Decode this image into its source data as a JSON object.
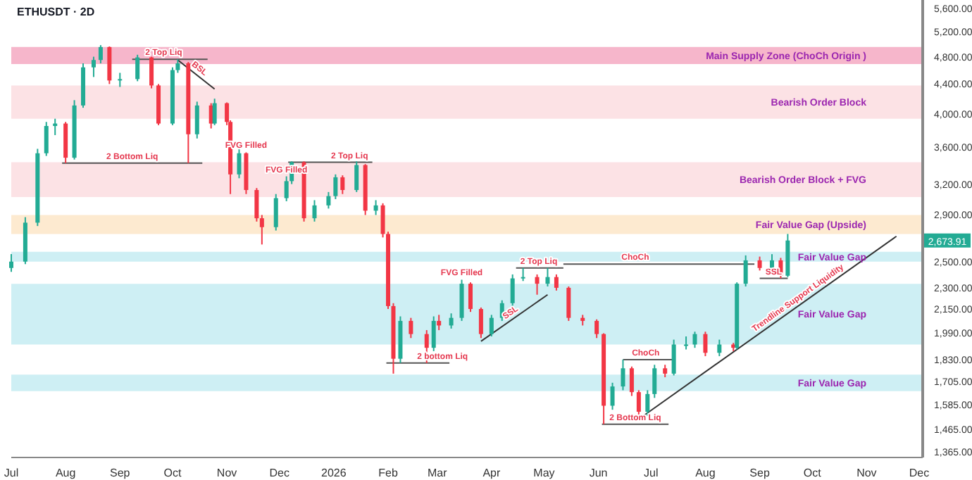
{
  "chart_data": {
    "type": "candlestick",
    "title": "ETHUSDT · 2D",
    "log": true,
    "xlim": [
      "2025-07-01",
      "2026-12-03"
    ],
    "xticks": [
      {
        "value": "2025-07-01",
        "label": "Jul"
      },
      {
        "value": "2025-08-01",
        "label": "Aug"
      },
      {
        "value": "2025-09-01",
        "label": "Sep"
      },
      {
        "value": "2025-10-01",
        "label": "Oct"
      },
      {
        "value": "2025-11-01",
        "label": "Nov"
      },
      {
        "value": "2025-12-01",
        "label": "Dec"
      },
      {
        "value": "2026-01-01",
        "label": "2026"
      },
      {
        "value": "2026-02-01",
        "label": "Feb"
      },
      {
        "value": "2026-03-01",
        "label": "Mar"
      },
      {
        "value": "2026-04-01",
        "label": "Apr"
      },
      {
        "value": "2026-05-01",
        "label": "May"
      },
      {
        "value": "2026-06-01",
        "label": "Jun"
      },
      {
        "value": "2026-07-01",
        "label": "Jul"
      },
      {
        "value": "2026-08-01",
        "label": "Aug"
      },
      {
        "value": "2026-09-01",
        "label": "Sep"
      },
      {
        "value": "2026-10-01",
        "label": "Oct"
      },
      {
        "value": "2026-11-01",
        "label": "Nov"
      },
      {
        "value": "2026-12-01",
        "label": "Dec"
      }
    ],
    "ylim": [
      1340,
      5750
    ],
    "yticks": [
      {
        "value": 1365,
        "label": "1,365.00"
      },
      {
        "value": 1465,
        "label": "1,465.00"
      },
      {
        "value": 1585,
        "label": "1,585.00"
      },
      {
        "value": 1705,
        "label": "1,705.00"
      },
      {
        "value": 1830,
        "label": "1,830.00"
      },
      {
        "value": 1990,
        "label": "1,990.00"
      },
      {
        "value": 2150,
        "label": "2,150.00"
      },
      {
        "value": 2300,
        "label": "2,300.00"
      },
      {
        "value": 2500,
        "label": "2,500.00"
      },
      {
        "value": 2900,
        "label": "2,900.00"
      },
      {
        "value": 3200,
        "label": "3,200.00"
      },
      {
        "value": 3600,
        "label": "3,600.00"
      },
      {
        "value": 4000,
        "label": "4,000.00"
      },
      {
        "value": 4400,
        "label": "4,400.00"
      },
      {
        "value": 4800,
        "label": "4,800.00"
      },
      {
        "value": 5200,
        "label": "5,200.00"
      },
      {
        "value": 5600,
        "label": "5,600.00"
      }
    ],
    "x": [
      "2025-07-01",
      "2025-07-09",
      "2025-07-16",
      "2025-07-21",
      "2025-07-26",
      "2025-08-01",
      "2025-08-06",
      "2025-08-11",
      "2025-08-17",
      "2025-08-21",
      "2025-08-26",
      "2025-09-01",
      "2025-09-11",
      "2025-09-19",
      "2025-09-23",
      "2025-10-01",
      "2025-10-04",
      "2025-10-10",
      "2025-10-15",
      "2025-10-23",
      "2025-10-25",
      "2025-11-01",
      "2025-11-03",
      "2025-11-08",
      "2025-11-12",
      "2025-11-18",
      "2025-11-21",
      "2025-11-29",
      "2025-12-05",
      "2025-12-08",
      "2025-12-15",
      "2025-12-21",
      "2025-12-29",
      "2026-01-02",
      "2026-01-06",
      "2026-01-14",
      "2026-01-19",
      "2026-01-25",
      "2026-01-29",
      "2026-02-01",
      "2026-02-04",
      "2026-02-08",
      "2026-02-14",
      "2026-02-23",
      "2026-02-27",
      "2026-03-02",
      "2026-03-09",
      "2026-03-15",
      "2026-03-20",
      "2026-03-26",
      "2026-04-01",
      "2026-04-07",
      "2026-04-13",
      "2026-04-19",
      "2026-04-27",
      "2026-05-03",
      "2026-05-08",
      "2026-05-15",
      "2026-05-23",
      "2026-05-31",
      "2026-06-04",
      "2026-06-09",
      "2026-06-15",
      "2026-06-20",
      "2026-06-24",
      "2026-06-29",
      "2026-07-03",
      "2026-07-09",
      "2026-07-14",
      "2026-07-21",
      "2026-07-26",
      "2026-08-01",
      "2026-08-09",
      "2026-08-17",
      "2026-08-19",
      "2026-08-24",
      "2026-09-01",
      "2026-09-08",
      "2026-09-13",
      "2026-09-17"
    ],
    "ohlc": [
      [
        2450,
        2560,
        2420,
        2500
      ],
      [
        2500,
        2880,
        2480,
        2830
      ],
      [
        2830,
        3580,
        2800,
        3530
      ],
      [
        3530,
        3900,
        3500,
        3850
      ],
      [
        3850,
        3940,
        3740,
        3880
      ],
      [
        3880,
        3900,
        3420,
        3480
      ],
      [
        3480,
        4180,
        3460,
        4110
      ],
      [
        4110,
        4700,
        4080,
        4640
      ],
      [
        4640,
        4800,
        4500,
        4750
      ],
      [
        4750,
        4980,
        4700,
        4950
      ],
      [
        4950,
        4960,
        4400,
        4450
      ],
      [
        4450,
        4560,
        4360,
        4470
      ],
      [
        4470,
        4830,
        4440,
        4790
      ],
      [
        4790,
        4800,
        4340,
        4380
      ],
      [
        4380,
        4400,
        3860,
        3880
      ],
      [
        3880,
        4640,
        3860,
        4600
      ],
      [
        4600,
        4760,
        4560,
        4700
      ],
      [
        4700,
        4720,
        3420,
        3750
      ],
      [
        3750,
        4160,
        3700,
        4110
      ],
      [
        4110,
        4140,
        3820,
        3880
      ],
      [
        3880,
        4200,
        3860,
        4140
      ],
      [
        4140,
        4150,
        3860,
        3900
      ],
      [
        3900,
        3920,
        3100,
        3300
      ],
      [
        3300,
        3580,
        3260,
        3530
      ],
      [
        3530,
        3540,
        3100,
        3140
      ],
      [
        3140,
        3160,
        2840,
        2870
      ],
      [
        2870,
        2900,
        2640,
        2790
      ],
      [
        2790,
        3100,
        2760,
        3060
      ],
      [
        3060,
        3280,
        3030,
        3230
      ],
      [
        3230,
        3440,
        3200,
        3430
      ],
      [
        3430,
        3440,
        2840,
        2870
      ],
      [
        2870,
        3040,
        2840,
        2990
      ],
      [
        2990,
        3120,
        2960,
        3080
      ],
      [
        3080,
        3300,
        3050,
        3270
      ],
      [
        3270,
        3290,
        3100,
        3140
      ],
      [
        3140,
        3440,
        3120,
        3400
      ],
      [
        3400,
        3410,
        2900,
        2940
      ],
      [
        2940,
        3040,
        2900,
        2990
      ],
      [
        2990,
        3010,
        2700,
        2730
      ],
      [
        2730,
        2750,
        2150,
        2170
      ],
      [
        2170,
        2190,
        1750,
        1835
      ],
      [
        1835,
        2100,
        1810,
        2070
      ],
      [
        2070,
        2090,
        1960,
        1985
      ],
      [
        1985,
        2010,
        1810,
        1900
      ],
      [
        1900,
        2100,
        1880,
        2070
      ],
      [
        2070,
        2110,
        2010,
        2040
      ],
      [
        2040,
        2120,
        2020,
        2090
      ],
      [
        2090,
        2360,
        2070,
        2330
      ],
      [
        2330,
        2340,
        2130,
        2150
      ],
      [
        2150,
        2160,
        1960,
        1985
      ],
      [
        1985,
        2110,
        1970,
        2090
      ],
      [
        2090,
        2210,
        2070,
        2190
      ],
      [
        2190,
        2400,
        2170,
        2370
      ],
      [
        2370,
        2450,
        2350,
        2380
      ],
      [
        2380,
        2400,
        2250,
        2330
      ],
      [
        2330,
        2450,
        2310,
        2380
      ],
      [
        2380,
        2400,
        2280,
        2300
      ],
      [
        2300,
        2310,
        2070,
        2090
      ],
      [
        2090,
        2110,
        2040,
        2070
      ],
      [
        2070,
        2080,
        1960,
        1985
      ],
      [
        1985,
        1990,
        1490,
        1580
      ],
      [
        1580,
        1700,
        1560,
        1680
      ],
      [
        1680,
        1830,
        1660,
        1780
      ],
      [
        1780,
        1790,
        1630,
        1650
      ],
      [
        1650,
        1660,
        1520,
        1550
      ],
      [
        1550,
        1660,
        1530,
        1640
      ],
      [
        1640,
        1800,
        1620,
        1780
      ],
      [
        1780,
        1800,
        1730,
        1750
      ],
      [
        1750,
        1950,
        1740,
        1920
      ],
      [
        1920,
        1970,
        1890,
        1920
      ],
      [
        1920,
        2000,
        1900,
        1985
      ],
      [
        1985,
        2000,
        1850,
        1870
      ],
      [
        1870,
        1950,
        1850,
        1920
      ],
      [
        1920,
        1930,
        1880,
        1900
      ],
      [
        1900,
        2340,
        1890,
        2330
      ],
      [
        2330,
        2550,
        2310,
        2510
      ],
      [
        2510,
        2540,
        2430,
        2450
      ],
      [
        2450,
        2560,
        2430,
        2510
      ],
      [
        2510,
        2530,
        2370,
        2390
      ],
      [
        2390,
        2730,
        2380,
        2673.91
      ]
    ],
    "series": [
      {
        "type": "line",
        "color": "#333333",
        "x": [
          "2025-10-04",
          "2025-10-25"
        ],
        "values": [
          4750,
          4330
        ]
      },
      {
        "type": "line",
        "color": "#333333",
        "x": [
          "2026-03-26",
          "2026-05-03"
        ],
        "values": [
          1940,
          2250
        ]
      },
      {
        "type": "line",
        "color": "#333333",
        "x": [
          "2026-06-25",
          "2026-11-18"
        ],
        "values": [
          1520,
          2710
        ]
      },
      {
        "type": "line",
        "color": "#555555",
        "x": [
          "2025-09-08",
          "2025-10-21"
        ],
        "values": [
          4760,
          4760
        ]
      },
      {
        "type": "line",
        "color": "#555555",
        "x": [
          "2025-07-30",
          "2025-10-18"
        ],
        "values": [
          3420,
          3420
        ]
      },
      {
        "type": "line",
        "color": "#555555",
        "x": [
          "2025-12-06",
          "2026-01-23"
        ],
        "values": [
          3430,
          3430
        ]
      },
      {
        "type": "line",
        "color": "#555555",
        "x": [
          "2026-01-31",
          "2026-03-08"
        ],
        "values": [
          1810,
          1810
        ]
      },
      {
        "type": "line",
        "color": "#555555",
        "x": [
          "2026-04-15",
          "2026-05-12"
        ],
        "values": [
          2450,
          2450
        ]
      },
      {
        "type": "line",
        "color": "#555555",
        "x": [
          "2026-05-12",
          "2026-08-29"
        ],
        "values": [
          2480,
          2480
        ]
      },
      {
        "type": "line",
        "color": "#555555",
        "x": [
          "2026-06-03",
          "2026-07-11"
        ],
        "values": [
          1490,
          1490
        ]
      },
      {
        "type": "line",
        "color": "#555555",
        "x": [
          "2026-06-15",
          "2026-07-14"
        ],
        "values": [
          1830,
          1830
        ]
      },
      {
        "type": "line",
        "color": "#555555",
        "x": [
          "2026-09-01",
          "2026-09-17"
        ],
        "values": [
          2370,
          2370
        ]
      }
    ],
    "bands": [
      {
        "axis": "y",
        "from": 4690,
        "to": 4950,
        "label": "Main Supply Zone (ChoCh Origin )",
        "color": "#f5a9c2"
      },
      {
        "axis": "y",
        "from": 3940,
        "to": 4380,
        "label": "Bearish Order Block",
        "color": "#fcdde1"
      },
      {
        "axis": "y",
        "from": 3070,
        "to": 3430,
        "label": "Bearish Order Block + FVG",
        "color": "#fcdde1"
      },
      {
        "axis": "y",
        "from": 2730,
        "to": 2900,
        "label": "Fair Value Gap (Upside)",
        "color": "#fde6c8"
      },
      {
        "axis": "y",
        "from": 2500,
        "to": 2580,
        "label": "Fair Value Gap",
        "color": "#c5ecf2"
      },
      {
        "axis": "y",
        "from": 1920,
        "to": 2330,
        "label": "Fair Value Gap",
        "color": "#c5ecf2"
      },
      {
        "axis": "y",
        "from": 1655,
        "to": 1745,
        "label": "Fair Value Gap",
        "color": "#c5ecf2"
      }
    ],
    "annotations": [
      {
        "text": "2 Top Liq",
        "x": "2025-09-26",
        "y": 4760
      },
      {
        "text": "2 Bottom Liq",
        "x": "2025-09-08",
        "y": 3420
      },
      {
        "text": "BSL",
        "x": "2025-10-14",
        "y": 4545
      },
      {
        "text": "FVG Filled",
        "x": "2025-11-12",
        "y": 3540
      },
      {
        "text": "FVG Filled",
        "x": "2025-12-05",
        "y": 3280
      },
      {
        "text": "2 Top Liq",
        "x": "2026-01-10",
        "y": 3430
      },
      {
        "text": "2 bottom Liq",
        "x": "2026-03-04",
        "y": 1810
      },
      {
        "text": "FVG Filled",
        "x": "2026-03-15",
        "y": 2360
      },
      {
        "text": "SSL",
        "x": "2026-04-14",
        "y": 2089
      },
      {
        "text": "2 Top Liq",
        "x": "2026-04-28",
        "y": 2450
      },
      {
        "text": "ChoCh",
        "x": "2026-06-22",
        "y": 2480
      },
      {
        "text": "2 Bottom Liq",
        "x": "2026-06-22",
        "y": 1490
      },
      {
        "text": "ChoCh",
        "x": "2026-06-28",
        "y": 1830
      },
      {
        "text": "SSL",
        "x": "2026-09-09",
        "y": 2370
      },
      {
        "text": "Trendline Support Liquidity",
        "x": "2026-09-25",
        "y": 2188
      },
      {
        "text": "2,673.91",
        "y": 2673.91
      }
    ]
  }
}
